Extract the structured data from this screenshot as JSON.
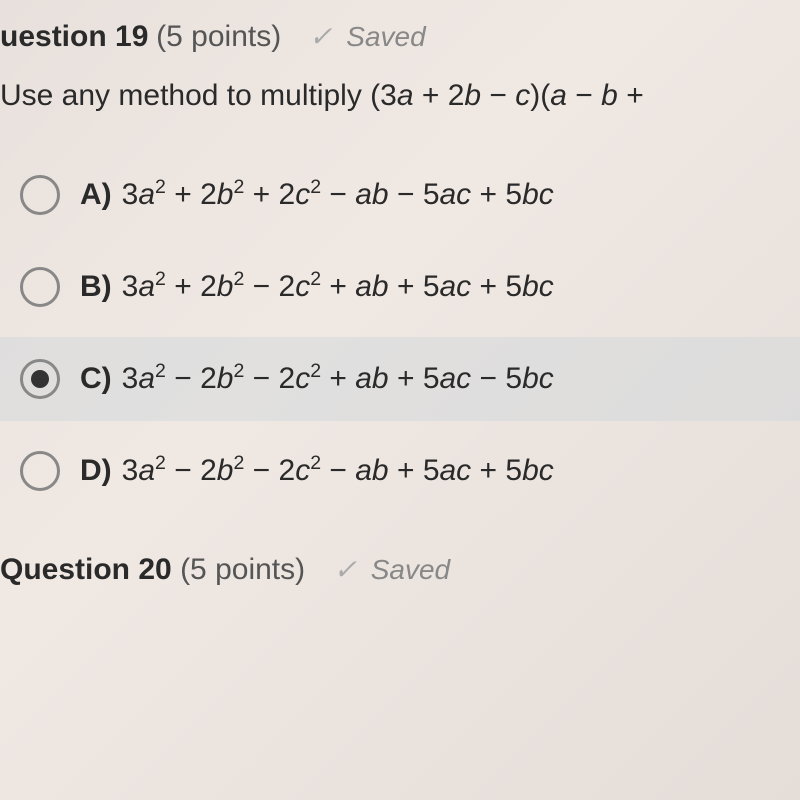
{
  "question": {
    "number": "19",
    "title_prefix": "uestion",
    "points_label": "(5 points)",
    "saved_label": "Saved",
    "prompt_prefix": "Use any method to multiply (3",
    "prompt_part_a": "a",
    "prompt_mid1": " + 2",
    "prompt_part_b": "b",
    "prompt_mid2": " − ",
    "prompt_part_c": "c",
    "prompt_mid3": ")(",
    "prompt_part_a2": "a",
    "prompt_mid4": " − ",
    "prompt_part_b2": "b",
    "prompt_end": " +"
  },
  "options": {
    "A": {
      "letter": "A)",
      "selected": false,
      "text": "3a² + 2b² + 2c² − ab − 5ac + 5bc"
    },
    "B": {
      "letter": "B)",
      "selected": false,
      "text": "3a² + 2b² − 2c² + ab + 5ac + 5bc"
    },
    "C": {
      "letter": "C)",
      "selected": true,
      "text": "3a² − 2b² − 2c² + ab + 5ac − 5bc"
    },
    "D": {
      "letter": "D)",
      "selected": false,
      "text": "3a² − 2b² − 2c² − ab + 5ac + 5bc"
    }
  },
  "question20": {
    "title": "Question 20",
    "points_label": "(5 points)",
    "saved_label": "Saved"
  },
  "styling": {
    "background_gradient": [
      "#e8e0dc",
      "#ede5e0",
      "#f0e8e3",
      "#ece4df",
      "#e5ddd8"
    ],
    "text_color": "#2a2a2a",
    "muted_color": "#888",
    "selected_bg": "rgba(210,215,220,0.5)",
    "radio_border": "#888",
    "radio_fill": "#333",
    "title_fontsize": 30,
    "body_fontsize": 30,
    "option_fontsize": 30
  }
}
